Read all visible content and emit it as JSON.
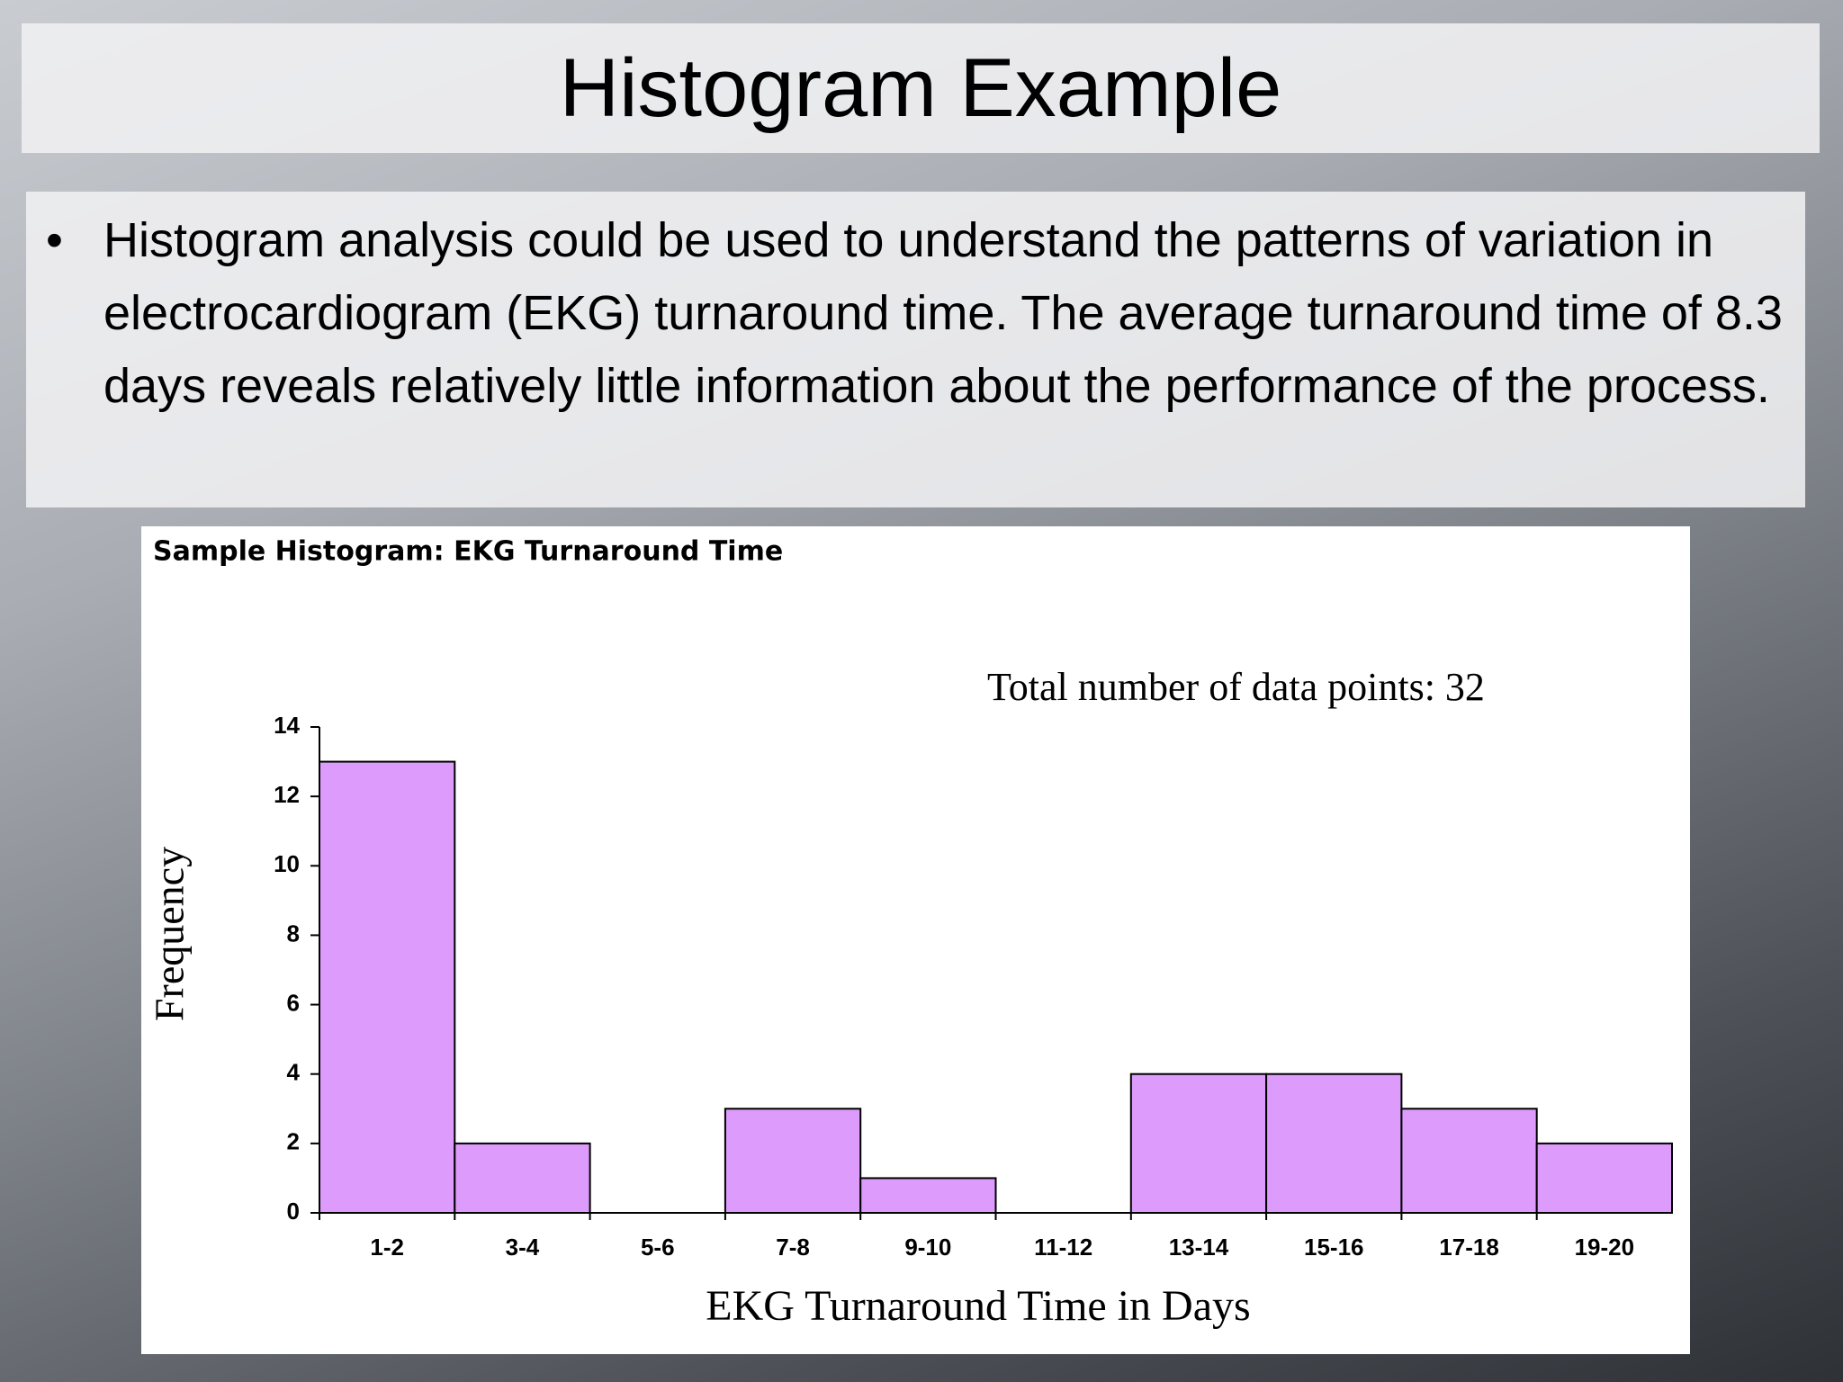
{
  "slide": {
    "title": "Histogram Example",
    "bullet": "Histogram analysis could be used to understand the patterns of variation in electrocardiogram (EKG) turnaround time. The average turnaround time of 8.3 days reveals relatively little information about the performance of the process."
  },
  "chart_data": {
    "type": "bar",
    "title": "Sample Histogram: EKG Turnaround Time",
    "annotation": "Total number of data points:  32",
    "x_label": "EKG Turnaround Time in Days",
    "y_label": "Frequency",
    "categories": [
      "1-2",
      "3-4",
      "5-6",
      "7-8",
      "9-10",
      "11-12",
      "13-14",
      "15-16",
      "17-18",
      "19-20"
    ],
    "values": [
      13,
      2,
      0,
      3,
      1,
      0,
      4,
      4,
      3,
      2
    ],
    "color": "#dd9bfb",
    "ylim": [
      0,
      14
    ],
    "yticks": [
      0,
      2,
      4,
      6,
      8,
      10,
      12,
      14
    ]
  }
}
